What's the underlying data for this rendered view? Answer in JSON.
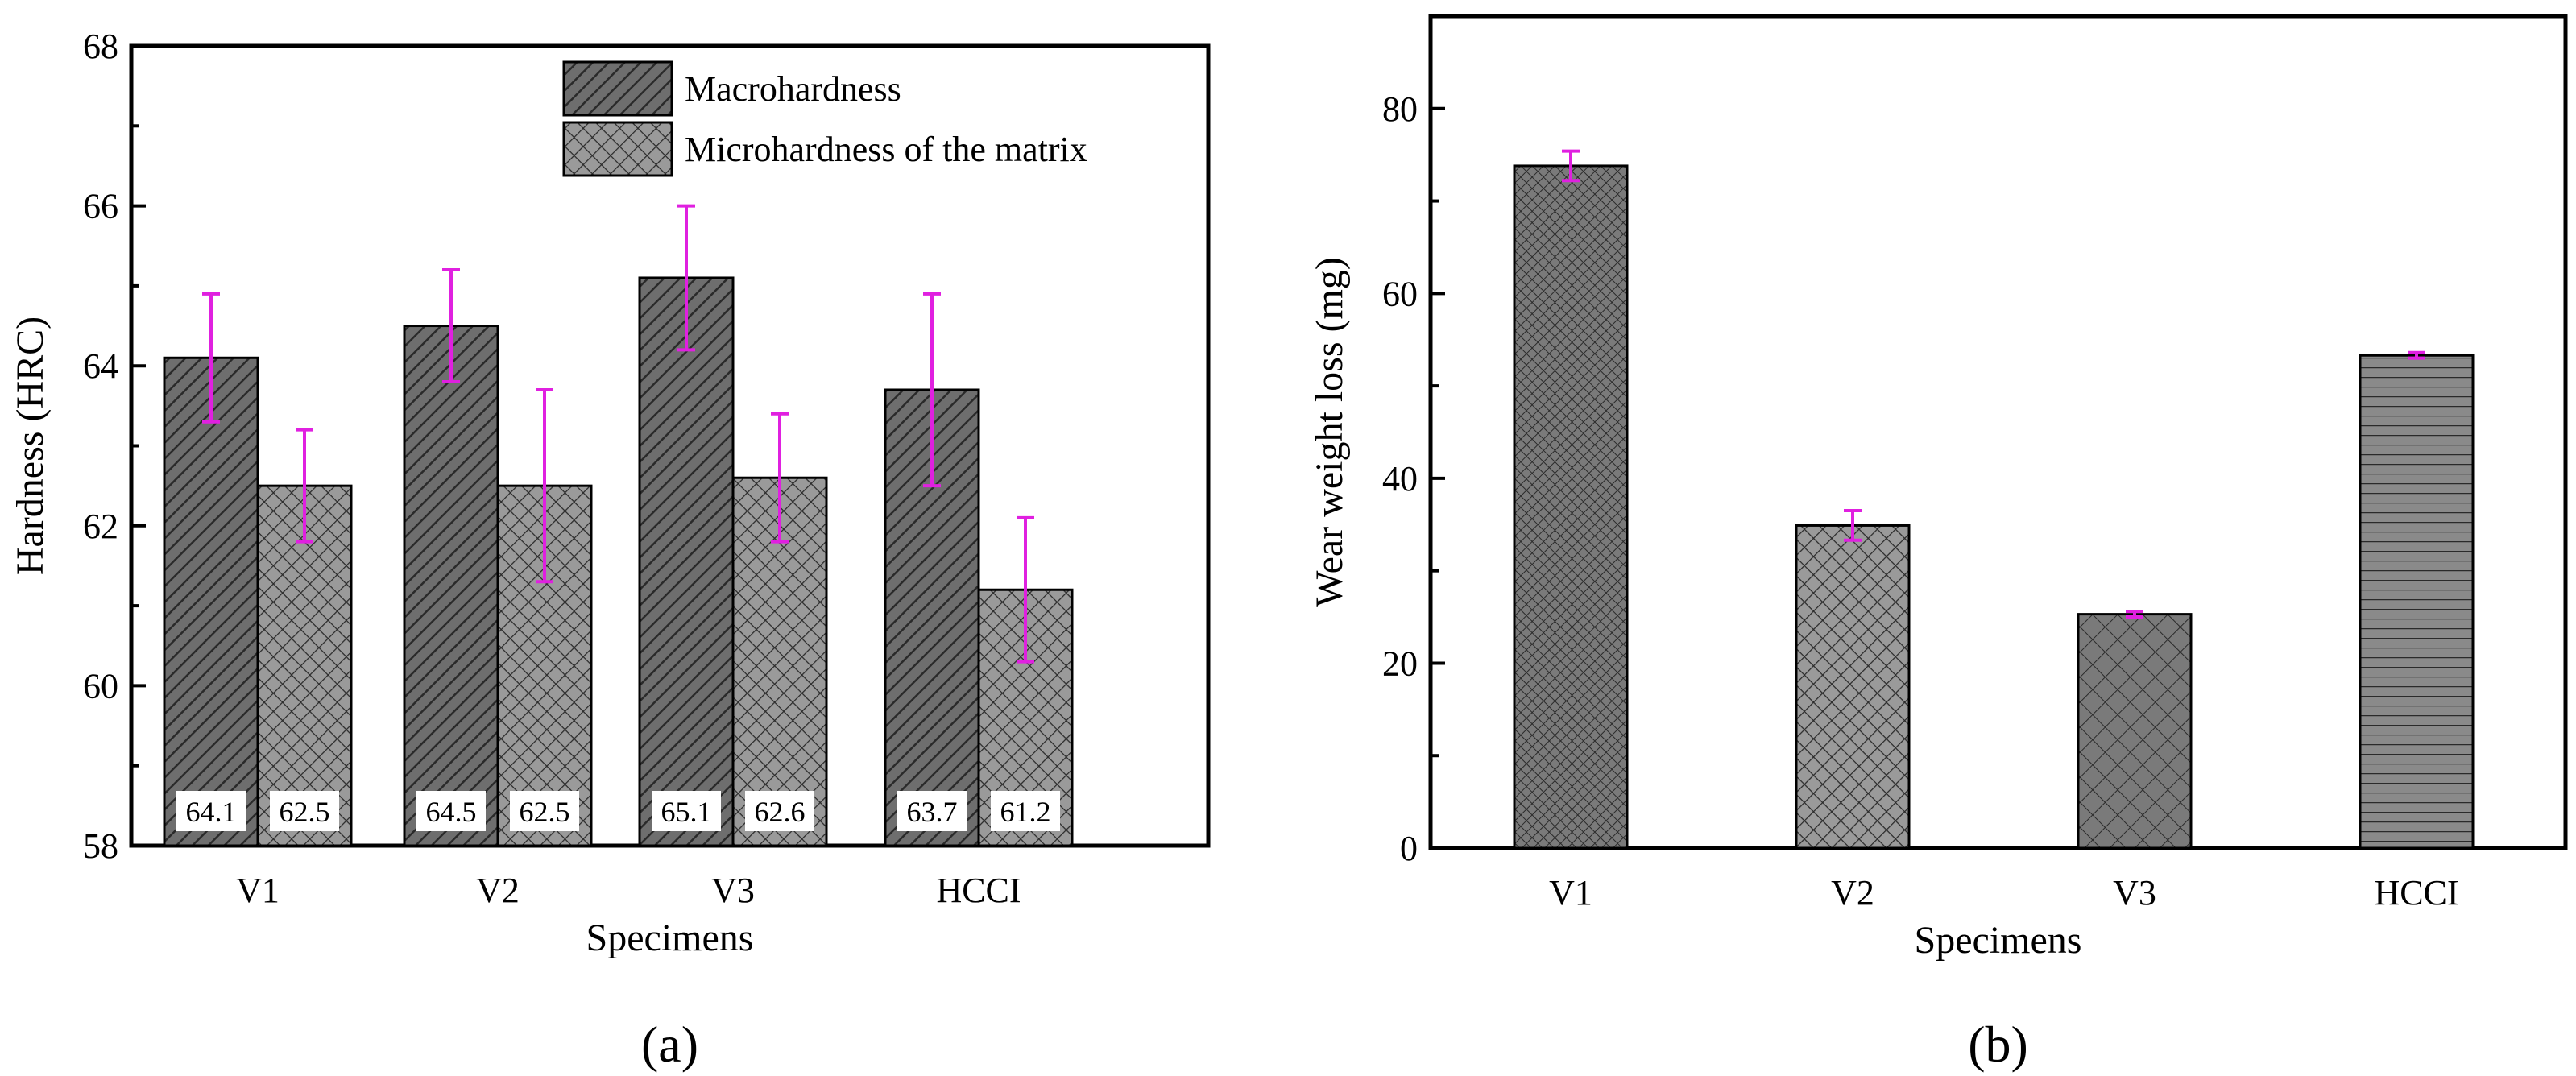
{
  "chart_data": [
    {
      "id": "a",
      "type": "bar",
      "panel_label": "(a)",
      "xlabel": "Specimens",
      "ylabel": "Hardness (HRC)",
      "ylim": [
        58,
        68
      ],
      "yticks": [
        58,
        60,
        62,
        64,
        66,
        68
      ],
      "categories": [
        "V1",
        "V2",
        "V3",
        "HCCI"
      ],
      "series": [
        {
          "name": "Macrohardness",
          "pattern": "diagonal-hatch",
          "values": [
            64.1,
            64.5,
            65.1,
            63.7
          ],
          "errors": [
            0.8,
            0.7,
            0.9,
            1.2
          ]
        },
        {
          "name": "Microhardness of the matrix",
          "pattern": "cross-hatch",
          "values": [
            62.5,
            62.5,
            62.6,
            61.2
          ],
          "errors": [
            0.7,
            1.2,
            0.8,
            0.9
          ]
        }
      ],
      "data_labels": [
        [
          "64.1",
          "64.5",
          "65.1",
          "63.7"
        ],
        [
          "62.5",
          "62.5",
          "62.6",
          "61.2"
        ]
      ],
      "legend_position": "top-right",
      "error_bar_color": "#e020e0",
      "bar_fill": "#6e6e6e"
    },
    {
      "id": "b",
      "type": "bar",
      "panel_label": "(b)",
      "xlabel": "Specimens",
      "ylabel": "Wear weight loss (mg)",
      "ylim": [
        0,
        90
      ],
      "yticks": [
        0,
        20,
        40,
        60,
        80
      ],
      "categories": [
        "V1",
        "V2",
        "V3",
        "HCCI"
      ],
      "values": [
        73.8,
        34.9,
        25.3,
        53.3
      ],
      "errors": [
        1.6,
        1.6,
        0.3,
        0.3
      ],
      "patterns": [
        "fine-cross",
        "cross-hatch",
        "wide-cross",
        "horizontal-lines"
      ],
      "error_bar_color": "#e020e0",
      "bar_fill": "#6e6e6e"
    }
  ]
}
